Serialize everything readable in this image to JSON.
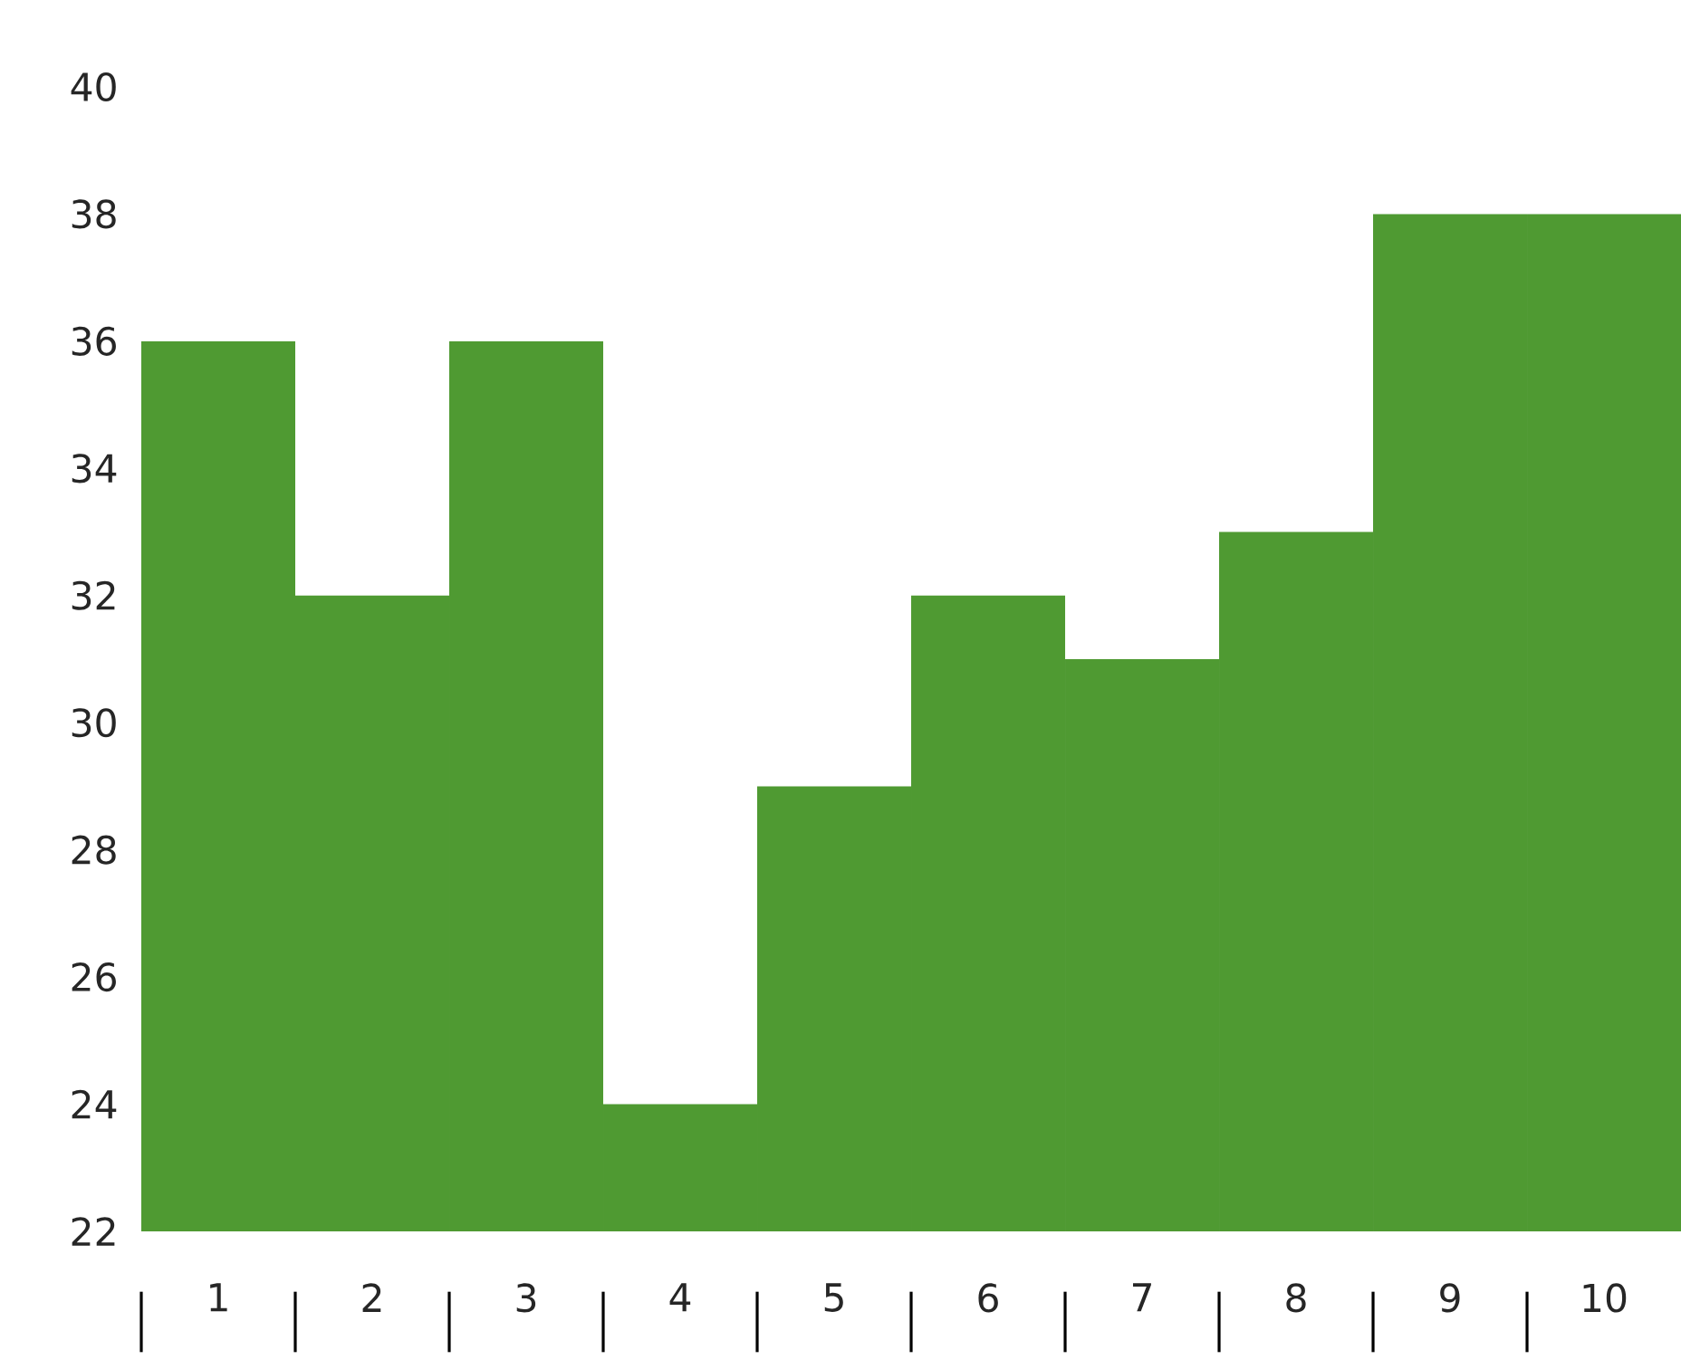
{
  "chart_data": {
    "type": "bar",
    "categories": [
      "1",
      "2",
      "3",
      "4",
      "5",
      "6",
      "7",
      "8",
      "9",
      "10"
    ],
    "values": [
      36,
      32,
      36,
      24,
      29,
      32,
      31,
      33,
      38,
      38
    ],
    "color": "#4f9a32",
    "ylim": [
      22,
      40
    ],
    "yticks": [
      22,
      24,
      26,
      28,
      30,
      32,
      34,
      36,
      38,
      40
    ],
    "grid": false
  }
}
